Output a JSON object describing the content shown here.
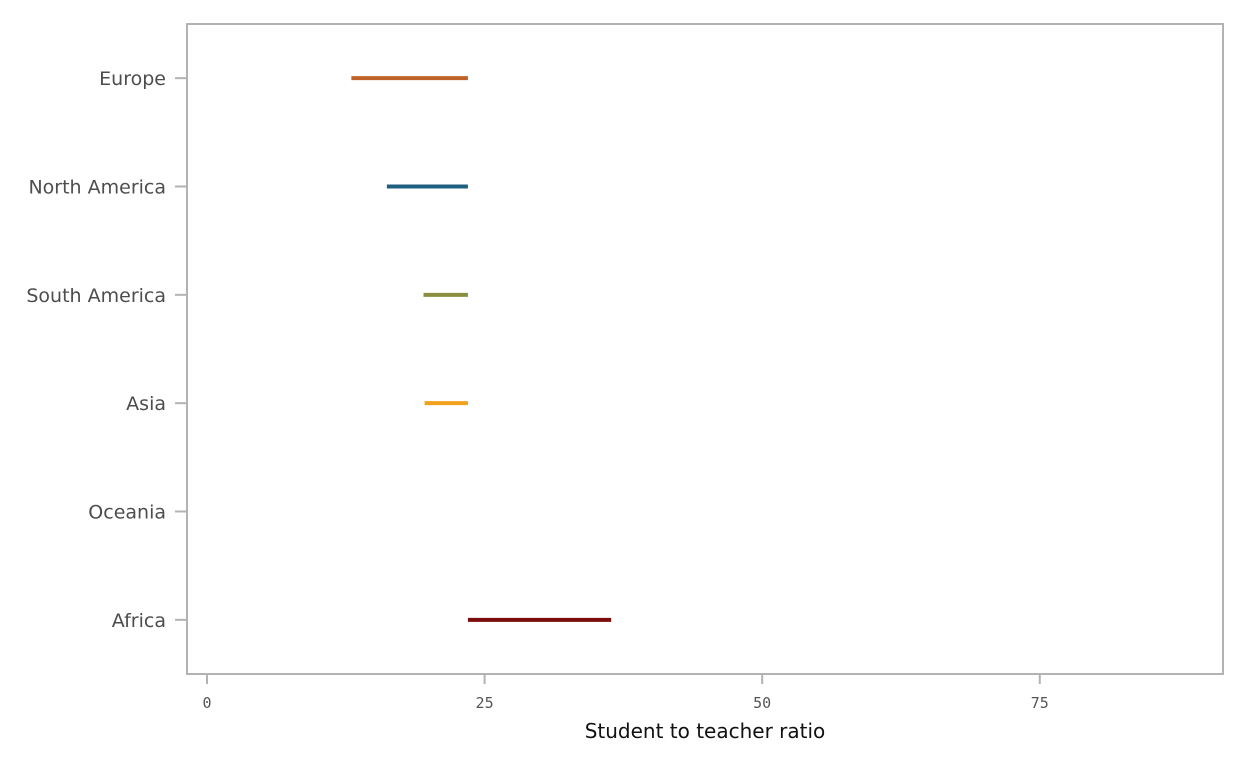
{
  "chart_data": {
    "type": "bar",
    "orientation": "horizontal-range",
    "title": "",
    "xlabel": "Student to teacher ratio",
    "ylabel": "",
    "xlim": [
      -1.8,
      91.5
    ],
    "xticks": [
      0,
      25,
      50,
      75
    ],
    "categories": [
      "Europe",
      "North America",
      "South America",
      "Asia",
      "Oceania",
      "Africa"
    ],
    "ranges": [
      {
        "category": "Europe",
        "start": 13.0,
        "end": 23.5,
        "color": "#c0632a"
      },
      {
        "category": "North America",
        "start": 16.2,
        "end": 23.5,
        "color": "#1e5f80"
      },
      {
        "category": "South America",
        "start": 19.5,
        "end": 23.5,
        "color": "#8a8f3f"
      },
      {
        "category": "Asia",
        "start": 19.6,
        "end": 23.5,
        "color": "#f0a21d"
      },
      {
        "category": "Oceania",
        "start": 23.5,
        "end": 23.5,
        "color": "#666666"
      },
      {
        "category": "Africa",
        "start": 23.5,
        "end": 36.4,
        "color": "#7a0c0c"
      }
    ],
    "grid": false,
    "legend": "none"
  }
}
